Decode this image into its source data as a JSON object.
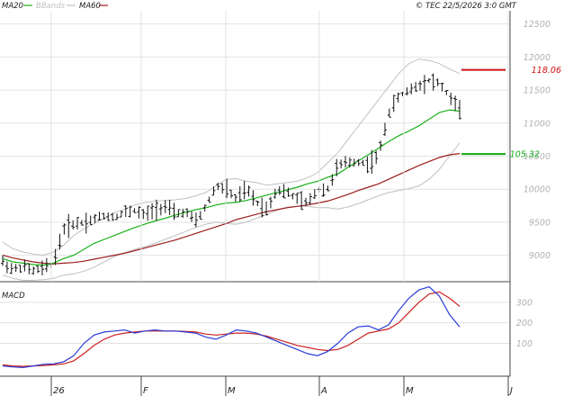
{
  "legend": {
    "ma20": "MA20",
    "bbands": "BBands",
    "ma60": "MA60",
    "copyright": "© TEC 22/5/2026 3:0 GMT"
  },
  "colors": {
    "ma20": "#19b219",
    "ma60": "#9b1c1c",
    "bbands": "#c0c0c0",
    "bars": "#111111",
    "macd": "#2a3bd6",
    "signal": "#cc2020",
    "tag_upper": "#cc1111",
    "tag_lower": "#11aa11"
  },
  "macd_panel": {
    "label": "MACD",
    "ticks": [
      "300",
      "200",
      "100"
    ]
  },
  "chart_data": [
    {
      "type": "line",
      "panel": "price",
      "yticks": [
        "12500",
        "12000",
        "11500",
        "11000",
        "10500",
        "10000",
        "9500",
        "9000"
      ],
      "ylim": [
        8600,
        12700
      ],
      "xticks": [
        "26",
        "F",
        "M",
        "A",
        "M",
        "J"
      ],
      "tags": {
        "upper": {
          "value": 11806,
          "label": "118.06"
        },
        "lower": {
          "value": 10532,
          "label": "105.32"
        }
      },
      "series": [
        {
          "name": "MA20",
          "key": "ma20",
          "values": [
            8950,
            8900,
            8880,
            8860,
            8850,
            8880,
            8950,
            9000,
            9090,
            9180,
            9240,
            9300,
            9360,
            9420,
            9470,
            9520,
            9560,
            9610,
            9650,
            9690,
            9720,
            9760,
            9790,
            9800,
            9830,
            9870,
            9910,
            9950,
            9990,
            10030,
            10080,
            10120,
            10180,
            10230,
            10330,
            10430,
            10520,
            10620,
            10720,
            10810,
            10880,
            10960,
            11060,
            11160,
            11200,
            11180
          ]
        },
        {
          "name": "MA60",
          "key": "ma60",
          "values": [
            9000,
            8960,
            8930,
            8900,
            8880,
            8870,
            8880,
            8890,
            8910,
            8940,
            8970,
            9000,
            9030,
            9070,
            9110,
            9150,
            9190,
            9230,
            9280,
            9330,
            9380,
            9430,
            9480,
            9540,
            9580,
            9620,
            9660,
            9690,
            9720,
            9740,
            9760,
            9790,
            9820,
            9870,
            9920,
            9980,
            10030,
            10080,
            10150,
            10220,
            10290,
            10360,
            10420,
            10480,
            10520,
            10540
          ]
        },
        {
          "name": "BBands upper",
          "key": "bb_upper",
          "values": [
            9200,
            9100,
            9050,
            9020,
            9000,
            9050,
            9150,
            9300,
            9400,
            9480,
            9560,
            9640,
            9700,
            9760,
            9800,
            9820,
            9830,
            9840,
            9860,
            9900,
            9950,
            10050,
            10150,
            10160,
            10120,
            10100,
            10060,
            10080,
            10100,
            10120,
            10170,
            10250,
            10400,
            10550,
            10750,
            10950,
            11150,
            11350,
            11550,
            11750,
            11900,
            11970,
            11950,
            11900,
            11820,
            11750
          ]
        },
        {
          "name": "BBands lower",
          "key": "bb_lower",
          "values": [
            8700,
            8650,
            8620,
            8620,
            8630,
            8650,
            8700,
            8720,
            8760,
            8820,
            8900,
            8980,
            9040,
            9090,
            9130,
            9180,
            9240,
            9300,
            9360,
            9420,
            9470,
            9500,
            9480,
            9470,
            9500,
            9560,
            9620,
            9680,
            9730,
            9740,
            9740,
            9720,
            9720,
            9700,
            9730,
            9780,
            9840,
            9900,
            9950,
            9980,
            10010,
            10050,
            10150,
            10300,
            10500,
            10700
          ]
        },
        {
          "name": "Price",
          "key": "close",
          "values": [
            8900,
            8780,
            8830,
            8760,
            8800,
            8880,
            9400,
            9480,
            9500,
            9550,
            9600,
            9580,
            9650,
            9680,
            9600,
            9700,
            9740,
            9620,
            9660,
            9500,
            9730,
            10050,
            10000,
            9850,
            10000,
            9800,
            9700,
            10000,
            9950,
            9850,
            9780,
            10000,
            10000,
            10350,
            10400,
            10420,
            10380,
            10500,
            11150,
            11400,
            11500,
            11580,
            11650,
            11600,
            11400,
            11200
          ]
        }
      ]
    },
    {
      "type": "line",
      "panel": "macd",
      "ylim": [
        -60,
        400
      ],
      "yticks": [
        "300",
        "200",
        "100"
      ],
      "series": [
        {
          "name": "MACD",
          "key": "macd",
          "values": [
            -10,
            -15,
            -18,
            -10,
            -2,
            0,
            10,
            40,
            100,
            140,
            155,
            160,
            165,
            150,
            160,
            165,
            160,
            160,
            155,
            150,
            130,
            120,
            140,
            165,
            160,
            150,
            130,
            110,
            90,
            70,
            50,
            40,
            60,
            100,
            150,
            180,
            185,
            165,
            190,
            260,
            320,
            360,
            375,
            330,
            240,
            180
          ]
        },
        {
          "name": "Signal",
          "key": "signal",
          "values": [
            -5,
            -10,
            -12,
            -10,
            -8,
            -5,
            0,
            15,
            50,
            90,
            120,
            140,
            150,
            155,
            160,
            160,
            160,
            160,
            158,
            155,
            145,
            140,
            145,
            150,
            150,
            145,
            135,
            120,
            105,
            90,
            80,
            70,
            65,
            70,
            90,
            120,
            150,
            160,
            170,
            200,
            250,
            300,
            340,
            350,
            320,
            280
          ]
        }
      ]
    }
  ]
}
